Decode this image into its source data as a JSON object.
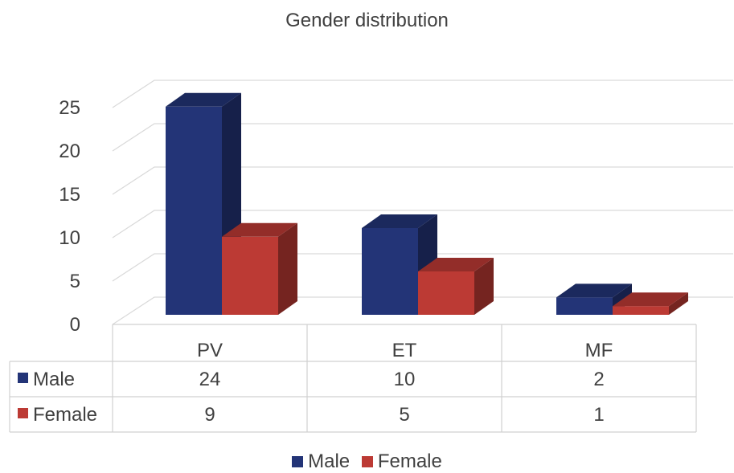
{
  "chart_data": {
    "type": "bar",
    "title": "Gender distribution",
    "categories": [
      "PV",
      "ET",
      "MF"
    ],
    "series": [
      {
        "name": "Male",
        "values": [
          24,
          10,
          2
        ],
        "color": "#233477"
      },
      {
        "name": "Female",
        "values": [
          9,
          5,
          1
        ],
        "color": "#BC3A34"
      }
    ],
    "ylim": [
      0,
      25
    ],
    "yticks": [
      0,
      5,
      10,
      15,
      20,
      25
    ],
    "style": "3d-clustered-column-with-data-table",
    "grid": true,
    "legend_position": "bottom"
  }
}
